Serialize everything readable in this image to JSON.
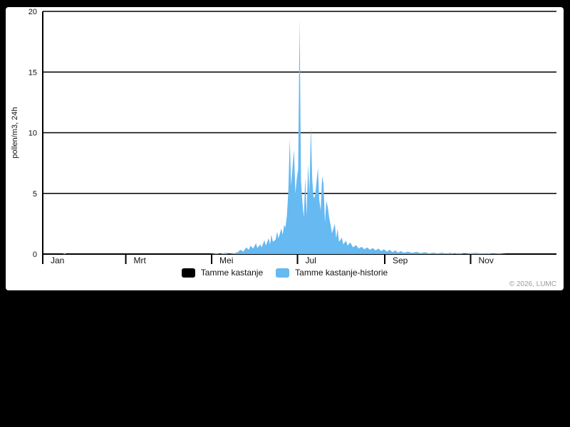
{
  "page": {
    "background_color": "#000000",
    "panel_color": "#ffffff",
    "copyright": "© 2026, LUMC",
    "copyright_color": "#9b9b9b"
  },
  "legend": {
    "items": [
      {
        "label": "Tamme kastanje",
        "color": "#000000"
      },
      {
        "label": "Tamme kastanje-historie",
        "color": "#66b9f1"
      }
    ]
  },
  "chart_data": {
    "type": "area",
    "title": "",
    "ylabel": "pollen/m3, 24h",
    "x_unit": "day_of_year",
    "x_range": [
      1,
      365
    ],
    "ylim": [
      0,
      20
    ],
    "y_ticks": [
      0,
      5,
      10,
      15,
      20
    ],
    "grid": true,
    "month_tick_labels": [
      "Jan",
      "Mrt",
      "Mei",
      "Jul",
      "Sep",
      "Nov"
    ],
    "month_tick_day_offsets": [
      0,
      59,
      120,
      181,
      243,
      304
    ],
    "axis_color": "#000000",
    "legend_position": "bottom",
    "series": [
      {
        "name": "Tamme kastanje",
        "color": "#000000",
        "days": [],
        "values": []
      },
      {
        "name": "Tamme kastanje-historie",
        "color": "#66b9f1",
        "days": [
          1,
          15,
          16,
          17,
          40,
          70,
          100,
          120,
          125,
          126,
          131,
          132,
          136,
          139,
          141,
          143,
          145,
          147,
          148,
          150,
          152,
          153,
          155,
          156,
          158,
          159,
          161,
          162,
          163,
          164,
          166,
          167,
          168,
          170,
          171,
          172,
          173,
          174,
          175,
          176,
          177,
          178,
          179,
          180,
          181,
          182,
          183,
          184,
          185,
          186,
          187,
          188,
          189,
          190,
          191,
          192,
          193,
          194,
          196,
          197,
          198,
          199,
          200,
          201,
          202,
          203,
          204,
          205,
          206,
          208,
          209,
          210,
          211,
          213,
          214,
          216,
          217,
          219,
          221,
          223,
          225,
          227,
          229,
          231,
          233,
          235,
          237,
          239,
          241,
          243,
          245,
          247,
          249,
          251,
          253,
          255,
          257,
          260,
          263,
          266,
          269,
          272,
          275,
          278,
          281,
          284,
          287,
          290,
          293,
          296,
          300,
          304,
          308,
          312,
          316,
          320,
          325,
          330,
          340,
          350,
          365
        ],
        "values": [
          0,
          0,
          0.1,
          0,
          0,
          0,
          0,
          0,
          0.08,
          0,
          0.12,
          0,
          0.05,
          0.15,
          0.35,
          0.2,
          0.55,
          0.35,
          0.7,
          0.45,
          0.9,
          0.5,
          0.8,
          0.55,
          1.15,
          0.7,
          1.3,
          0.8,
          1.6,
          1.0,
          1.2,
          1.85,
          1.3,
          2.1,
          1.6,
          2.4,
          2.2,
          3.2,
          5.2,
          9.5,
          5.6,
          7.2,
          8.6,
          5.0,
          6.2,
          7.0,
          19.4,
          6.0,
          4.2,
          3.0,
          6.3,
          3.2,
          7.4,
          5.0,
          10.5,
          6.0,
          4.6,
          4.8,
          7.1,
          4.4,
          3.6,
          6.4,
          5.8,
          2.6,
          4.4,
          3.9,
          3.0,
          2.4,
          1.7,
          2.5,
          1.3,
          2.1,
          1.0,
          1.35,
          0.8,
          1.1,
          0.7,
          0.95,
          0.55,
          0.75,
          0.45,
          0.6,
          0.4,
          0.55,
          0.35,
          0.5,
          0.3,
          0.45,
          0.25,
          0.4,
          0.2,
          0.35,
          0.15,
          0.3,
          0.12,
          0.25,
          0.1,
          0.2,
          0.1,
          0.18,
          0.08,
          0.15,
          0.06,
          0.12,
          0.05,
          0.12,
          0.04,
          0.1,
          0.03,
          0.08,
          0.02,
          0.06,
          0.1,
          0.05,
          0.08,
          0.03,
          0.05,
          0,
          0,
          0,
          0
        ]
      }
    ]
  }
}
